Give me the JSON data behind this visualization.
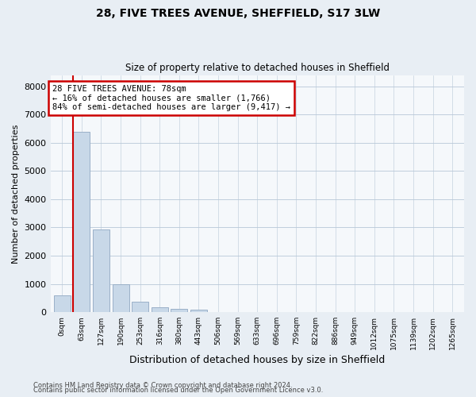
{
  "title_line1": "28, FIVE TREES AVENUE, SHEFFIELD, S17 3LW",
  "title_line2": "Size of property relative to detached houses in Sheffield",
  "xlabel": "Distribution of detached houses by size in Sheffield",
  "ylabel": "Number of detached properties",
  "bar_labels": [
    "0sqm",
    "63sqm",
    "127sqm",
    "190sqm",
    "253sqm",
    "316sqm",
    "380sqm",
    "443sqm",
    "506sqm",
    "569sqm",
    "633sqm",
    "696sqm",
    "759sqm",
    "822sqm",
    "886sqm",
    "949sqm",
    "1012sqm",
    "1075sqm",
    "1139sqm",
    "1202sqm",
    "1265sqm"
  ],
  "bar_values": [
    580,
    6400,
    2920,
    980,
    360,
    170,
    110,
    95,
    0,
    0,
    0,
    0,
    0,
    0,
    0,
    0,
    0,
    0,
    0,
    0,
    0
  ],
  "bar_color": "#c8d8e8",
  "bar_edgecolor": "#9ab0c8",
  "property_line_bin": 1.0,
  "annotation_text": "28 FIVE TREES AVENUE: 78sqm\n← 16% of detached houses are smaller (1,766)\n84% of semi-detached houses are larger (9,417) →",
  "annotation_box_color": "white",
  "annotation_box_edgecolor": "#cc0000",
  "vline_color": "#cc0000",
  "ylim": [
    0,
    8400
  ],
  "yticks": [
    0,
    1000,
    2000,
    3000,
    4000,
    5000,
    6000,
    7000,
    8000
  ],
  "footer_line1": "Contains HM Land Registry data © Crown copyright and database right 2024.",
  "footer_line2": "Contains public sector information licensed under the Open Government Licence v3.0.",
  "bg_color": "#e8eef4",
  "plot_bg_color": "#f5f8fb",
  "grid_color": "#b8c8d8"
}
